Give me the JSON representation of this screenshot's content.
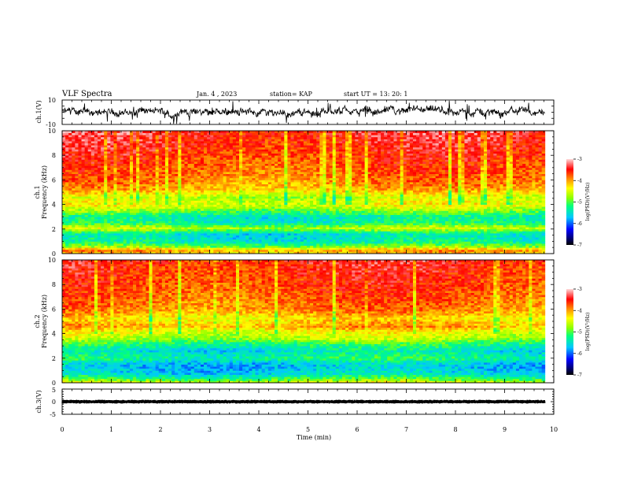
{
  "header": {
    "title": "VLF Spectra",
    "date": "Jan. 4 , 2023",
    "station": "station= KAP",
    "start": "start UT = 13: 20: 1"
  },
  "chart_data": [
    {
      "type": "line",
      "name": "ch1-waveform",
      "ylabel": "ch.1(V)",
      "ylim": [
        -10,
        10
      ],
      "y_ticks": [
        "10",
        "-10"
      ],
      "xlim": [
        0,
        10
      ],
      "data_extent_x": [
        0,
        9.82
      ],
      "approx_band": [
        -5,
        5
      ],
      "color": "#000000"
    },
    {
      "type": "heatmap",
      "name": "ch1-spectrogram",
      "ylabel_line1": "ch.1",
      "ylabel_line2": "Frequency (kHz)",
      "ylim": [
        0,
        10
      ],
      "y_ticks": [
        "0",
        "2",
        "4",
        "6",
        "8",
        "10"
      ],
      "xlim": [
        0,
        10
      ],
      "data_extent_x": [
        0,
        9.82
      ],
      "colorbar": {
        "label": "log(PSD)(V²/Hz)",
        "range": [
          -7,
          -3
        ],
        "ticks": [
          "-3",
          "-4",
          "-5",
          "-6",
          "-7"
        ]
      },
      "freq_profile_log_psd": [
        {
          "f": 0.0,
          "v": -4.2
        },
        {
          "f": 0.3,
          "v": -4.0
        },
        {
          "f": 0.6,
          "v": -4.9
        },
        {
          "f": 1.0,
          "v": -5.4
        },
        {
          "f": 1.6,
          "v": -5.5
        },
        {
          "f": 2.1,
          "v": -4.6
        },
        {
          "f": 2.5,
          "v": -5.3
        },
        {
          "f": 3.0,
          "v": -5.4
        },
        {
          "f": 3.5,
          "v": -4.9
        },
        {
          "f": 4.0,
          "v": -4.4
        },
        {
          "f": 4.6,
          "v": -4.6
        },
        {
          "f": 5.2,
          "v": -4.1
        },
        {
          "f": 5.8,
          "v": -3.9
        },
        {
          "f": 6.5,
          "v": -3.8
        },
        {
          "f": 8.0,
          "v": -3.6
        },
        {
          "f": 10.0,
          "v": -3.4
        }
      ]
    },
    {
      "type": "heatmap",
      "name": "ch2-spectrogram",
      "ylabel_line1": "ch.2",
      "ylabel_line2": "Frequency (kHz)",
      "ylim": [
        0,
        10
      ],
      "y_ticks": [
        "0",
        "2",
        "4",
        "6",
        "8",
        "10"
      ],
      "xlim": [
        0,
        10
      ],
      "data_extent_x": [
        0,
        9.82
      ],
      "colorbar": {
        "label": "log(PSD)(V²/Hz)",
        "range": [
          -7,
          -3
        ],
        "ticks": [
          "-3",
          "-4",
          "-5",
          "-6",
          "-7"
        ]
      },
      "freq_profile_log_psd": [
        {
          "f": 0.0,
          "v": -4.4
        },
        {
          "f": 0.3,
          "v": -5.0
        },
        {
          "f": 0.8,
          "v": -5.6
        },
        {
          "f": 1.5,
          "v": -5.7
        },
        {
          "f": 2.0,
          "v": -5.2
        },
        {
          "f": 2.6,
          "v": -5.5
        },
        {
          "f": 3.1,
          "v": -5.2
        },
        {
          "f": 3.6,
          "v": -4.7
        },
        {
          "f": 4.2,
          "v": -4.4
        },
        {
          "f": 4.6,
          "v": -4.0
        },
        {
          "f": 5.2,
          "v": -4.3
        },
        {
          "f": 6.0,
          "v": -3.9
        },
        {
          "f": 7.5,
          "v": -3.7
        },
        {
          "f": 10.0,
          "v": -3.5
        }
      ]
    },
    {
      "type": "line",
      "name": "ch3-waveform",
      "ylabel": "ch.3(V)",
      "ylim": [
        -5,
        5
      ],
      "y_ticks": [
        "5",
        "0",
        "-5"
      ],
      "xlim": [
        0,
        10
      ],
      "data_extent_x": [
        0,
        9.82
      ],
      "approx_band": [
        -0.7,
        0.7
      ],
      "color": "#000000"
    }
  ],
  "x_axis": {
    "label": "Time (min)",
    "ticks": [
      "0",
      "1",
      "2",
      "3",
      "4",
      "5",
      "6",
      "7",
      "8",
      "9",
      "10"
    ]
  }
}
